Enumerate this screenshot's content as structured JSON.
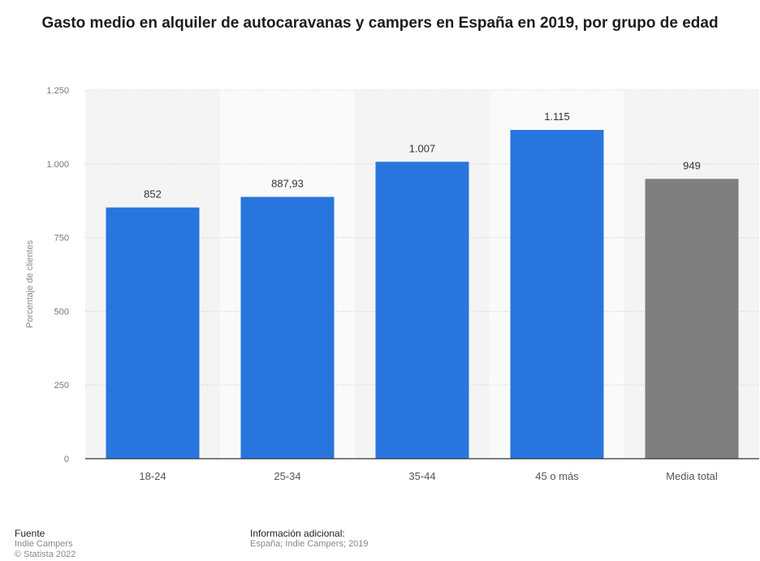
{
  "chart_data": {
    "type": "bar",
    "title": "Gasto medio en alquiler de autocaravanas y campers en España en 2019, por grupo de edad",
    "ylabel": "Porcentaje de clientes",
    "xlabel": "",
    "ylim": [
      0,
      1250
    ],
    "yticks": [
      0,
      250,
      500,
      750,
      1000,
      1250
    ],
    "ytick_labels": [
      "0",
      "250",
      "500",
      "750",
      "1.000",
      "1.250"
    ],
    "categories": [
      "18-24",
      "25-34",
      "35-44",
      "45 o más",
      "Media total"
    ],
    "values": [
      852,
      887.93,
      1007,
      1115,
      949
    ],
    "value_labels": [
      "852",
      "887,93",
      "1.007",
      "1.115",
      "949"
    ],
    "bar_colors": [
      "#2876dd",
      "#2876dd",
      "#2876dd",
      "#2876dd",
      "#7f7f7f"
    ],
    "grid": true,
    "legend": "none"
  },
  "footer": {
    "source_heading": "Fuente",
    "source_name": "Indie Campers",
    "copyright": "© Statista 2022",
    "info_heading": "Información adicional:",
    "info_text": "España; Indie Campers; 2019"
  }
}
